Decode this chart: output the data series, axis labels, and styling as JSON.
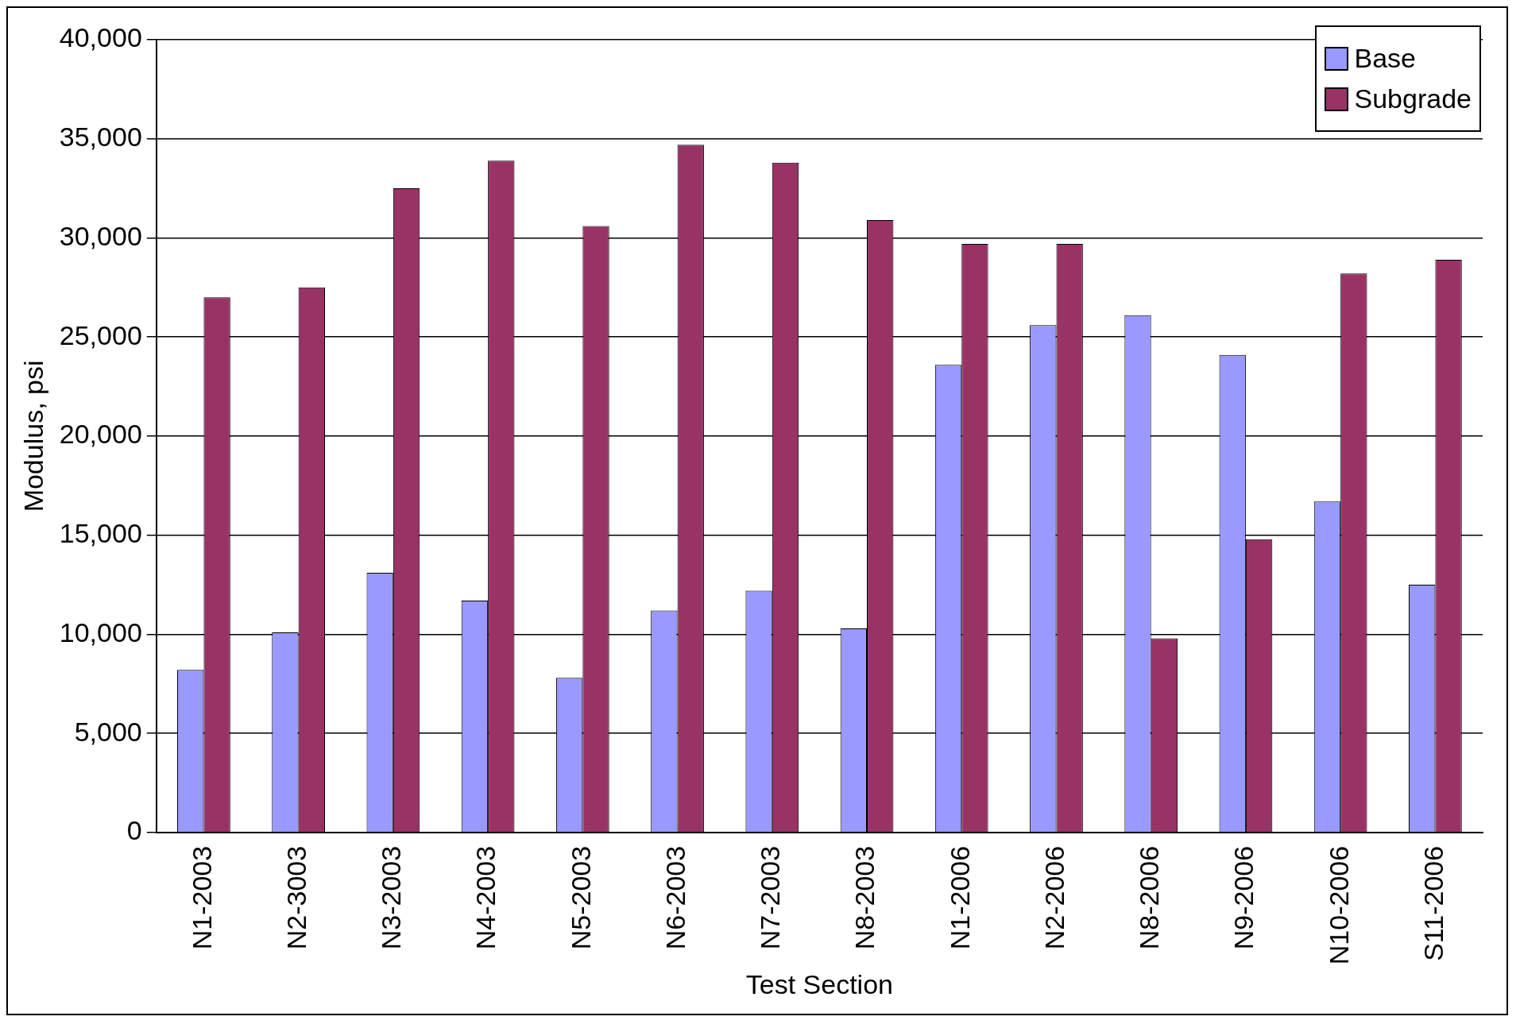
{
  "chart_data": {
    "type": "bar",
    "xlabel": "Test Section",
    "ylabel": "Modulus, psi",
    "categories": [
      "N1-2003",
      "N2-3003",
      "N3-2003",
      "N4-2003",
      "N5-2003",
      "N6-2003",
      "N7-2003",
      "N8-2003",
      "N1-2006",
      "N2-2006",
      "N8-2006",
      "N9-2006",
      "N10-2006",
      "S11-2006"
    ],
    "series": [
      {
        "name": "Base",
        "color": "#9999ff",
        "values": [
          8200,
          10100,
          13100,
          11700,
          7800,
          11200,
          12200,
          10300,
          23600,
          25600,
          26100,
          24100,
          16700,
          12500
        ]
      },
      {
        "name": "Subgrade",
        "color": "#993366",
        "values": [
          27000,
          27500,
          32500,
          33900,
          30600,
          34700,
          33800,
          30900,
          29700,
          29700,
          9800,
          14800,
          28200,
          28900
        ]
      }
    ],
    "ylim": [
      0,
      40000
    ],
    "yticks": [
      0,
      {
        "value": 5000,
        "label": "5,000"
      },
      {
        "value": 10000,
        "label": "10,000"
      },
      {
        "value": 15000,
        "label": "15,000"
      },
      {
        "value": 20000,
        "label": "20,000"
      },
      {
        "value": 25000,
        "label": "25,000"
      },
      {
        "value": 30000,
        "label": "30,000"
      },
      {
        "value": 35000,
        "label": "35,000"
      },
      {
        "value": 40000,
        "label": "40,000"
      }
    ],
    "grid": "y",
    "legend": "top right"
  }
}
